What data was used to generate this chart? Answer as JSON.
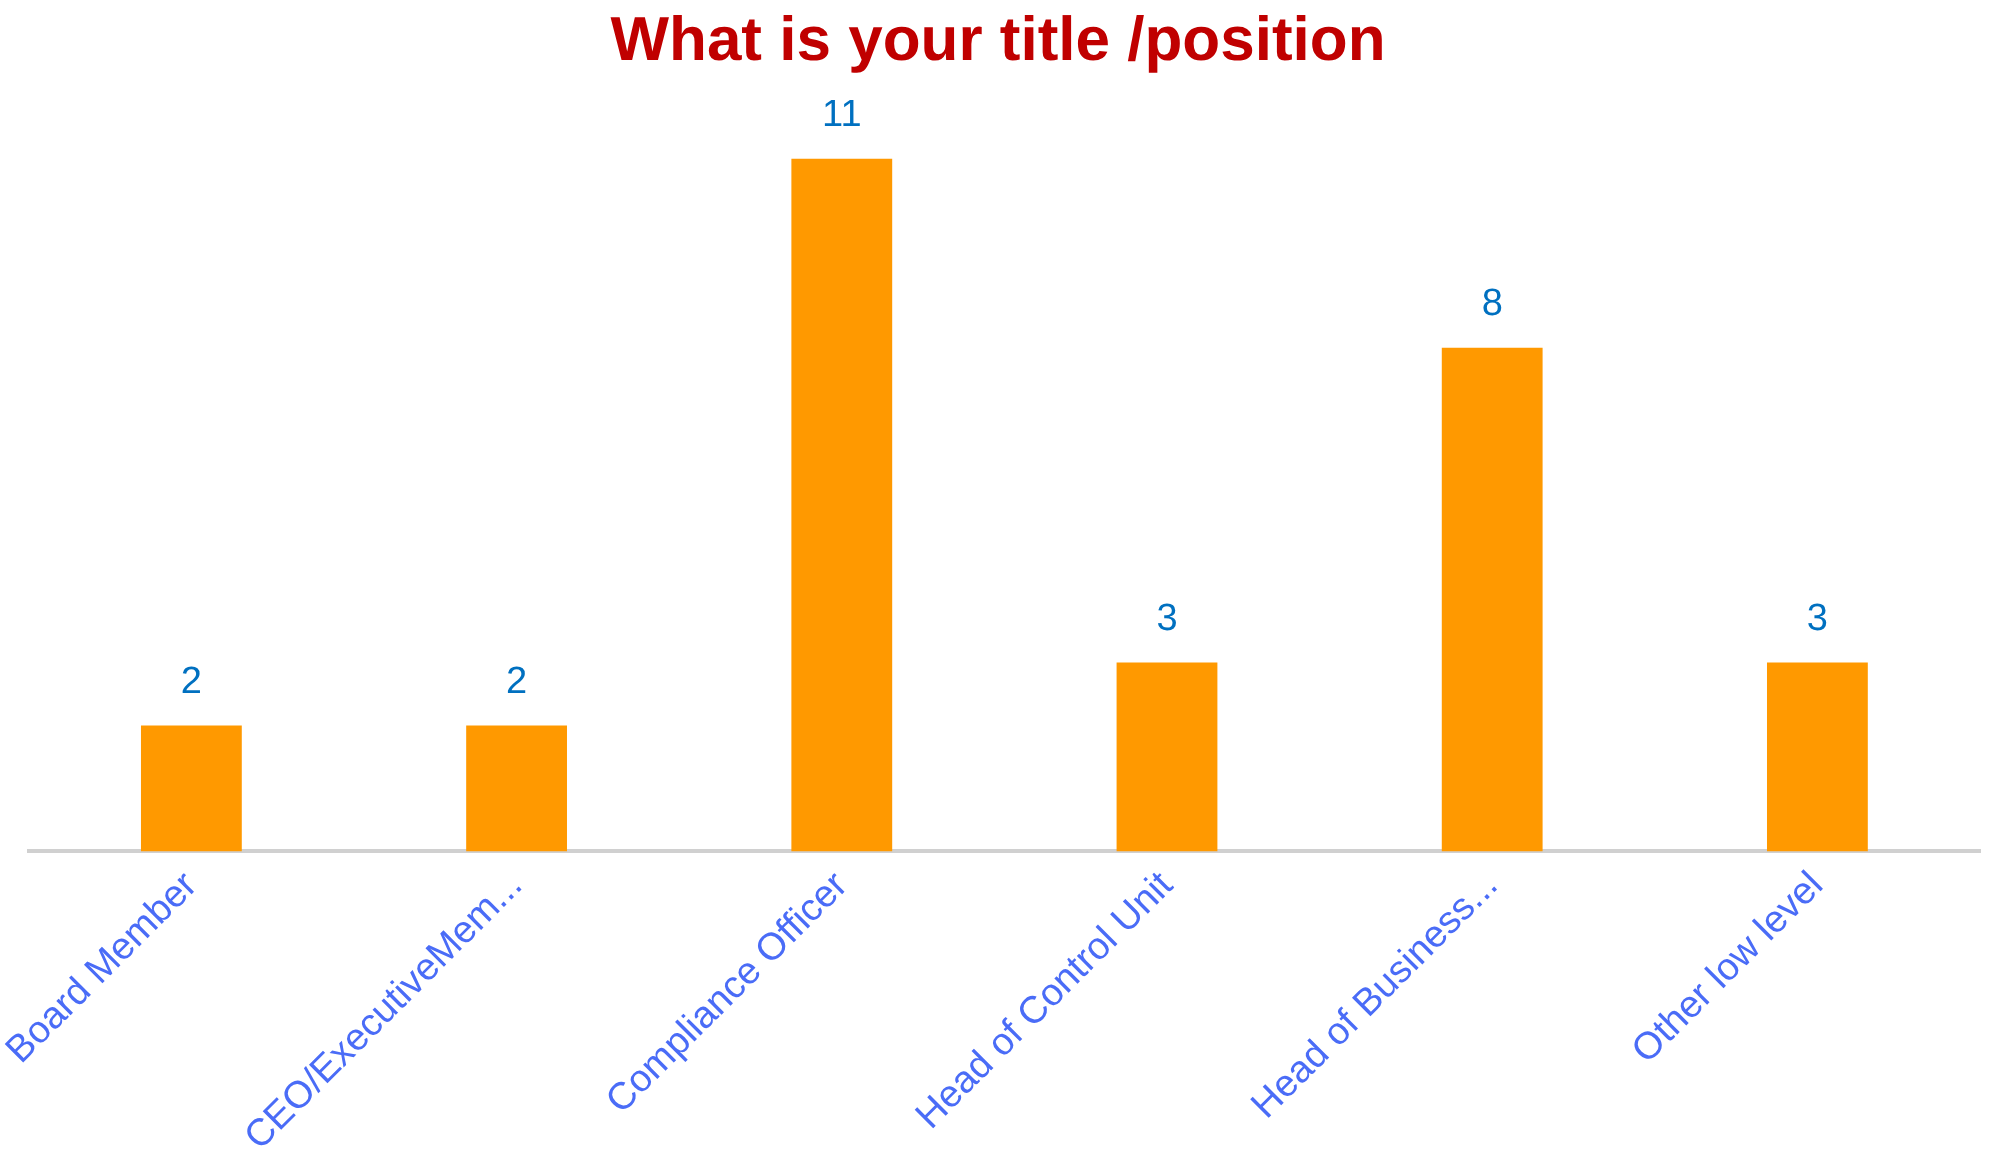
{
  "chart_data": {
    "type": "bar",
    "title": "What is your title /position",
    "categories": [
      "Board Member",
      "CEO/ExecutiveMem...",
      "Compliance Officer",
      "Head of Control Unit",
      "Head of Business...",
      "Other low level"
    ],
    "values": [
      2,
      2,
      11,
      3,
      8,
      3
    ],
    "color": "#ff9900",
    "data_labels": true,
    "grid": false,
    "legend": false
  }
}
